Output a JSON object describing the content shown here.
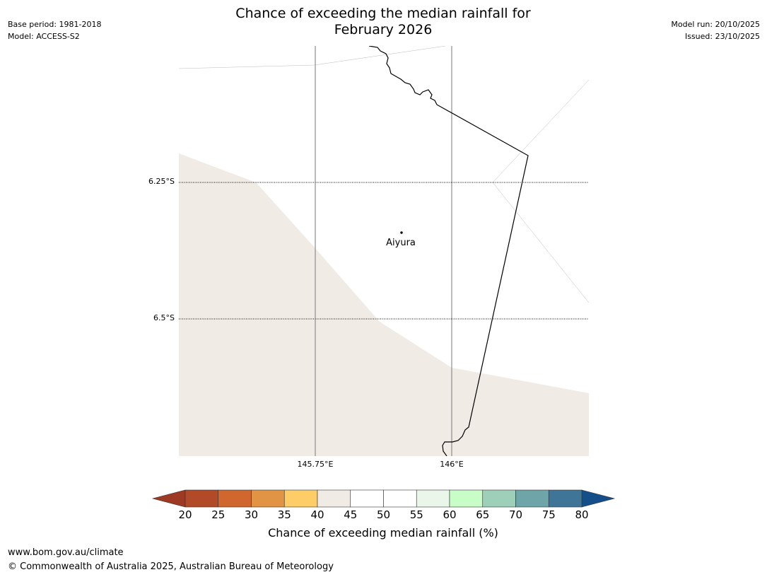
{
  "title": {
    "line1": "Chance of exceeding the median rainfall for",
    "line2": "February 2026"
  },
  "meta": {
    "base_period": "Base period: 1981-2018",
    "model": "Model: ACCESS-S2",
    "model_run": "Model run: 20/10/2025",
    "issued": "Issued: 23/10/2025"
  },
  "map": {
    "latitude_labels": [
      "6.25°S",
      "6.5°S"
    ],
    "longitude_labels": [
      "145.75°E",
      "146°E"
    ],
    "place": {
      "name": "Aiyura"
    },
    "fill_colors": {
      "land_shade": "#f0ebe5",
      "background": "#ffffff"
    }
  },
  "colorbar": {
    "title": "Chance of exceeding median rainfall (%)",
    "ticks": [
      "20",
      "25",
      "30",
      "35",
      "40",
      "45",
      "50",
      "55",
      "60",
      "65",
      "70",
      "75",
      "80"
    ],
    "under_color": "#9e3a24",
    "over_color": "#154f8a",
    "bin_colors": [
      "#b34a27",
      "#d0672f",
      "#e29445",
      "#fecd67",
      "#f0ebe5",
      "#ffffff",
      "#ffffff",
      "#eaf6e9",
      "#c9fdc8",
      "#9ecfb8",
      "#6da5a8",
      "#3f7697"
    ]
  },
  "footer": {
    "url": "www.bom.gov.au/climate",
    "copyright": "© Commonwealth of Australia 2025, Australian Bureau of Meteorology"
  }
}
